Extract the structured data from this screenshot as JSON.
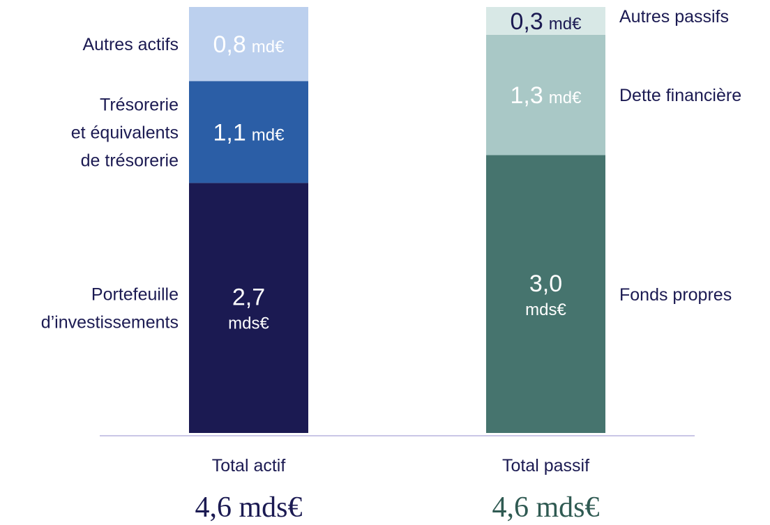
{
  "chart_data": {
    "type": "bar",
    "stacked": true,
    "title": "",
    "xlabel": "",
    "ylabel": "",
    "ylim": [
      0,
      4.6
    ],
    "grid": false,
    "categories": [
      "Total actif",
      "Total passif"
    ],
    "totals": [
      "4,6 mds€",
      "4,6 mds€"
    ],
    "total_colors": [
      "#1b1a52",
      "#2f5a52"
    ],
    "stacks": [
      {
        "category": "Total actif",
        "segments": [
          {
            "name": "Portefeuille d’investissements",
            "name_lines": [
              "Portefeuille",
              "d’investissements"
            ],
            "value": 2.7,
            "value_text": "2,7",
            "unit": "mds€",
            "color": "#1b1a52",
            "text_color": "#ffffff"
          },
          {
            "name": "Trésorerie et équivalents de trésorerie",
            "name_lines": [
              "Trésorerie",
              "et équivalents",
              "de trésorerie"
            ],
            "value": 1.1,
            "value_text": "1,1",
            "unit": "md€",
            "color": "#2b5ea6",
            "text_color": "#ffffff"
          },
          {
            "name": "Autres actifs",
            "name_lines": [
              "Autres actifs"
            ],
            "value": 0.8,
            "value_text": "0,8",
            "unit": "md€",
            "color": "#bcd0ee",
            "text_color": "#ffffff"
          }
        ]
      },
      {
        "category": "Total passif",
        "segments": [
          {
            "name": "Fonds propres",
            "name_lines": [
              "Fonds propres"
            ],
            "value": 3.0,
            "value_text": "3,0",
            "unit": "mds€",
            "color": "#46746e",
            "text_color": "#ffffff"
          },
          {
            "name": "Dette financière",
            "name_lines": [
              "Dette financière"
            ],
            "value": 1.3,
            "value_text": "1,3",
            "unit": "md€",
            "color": "#a9c8c6",
            "text_color": "#ffffff"
          },
          {
            "name": "Autres passifs",
            "name_lines": [
              "Autres passifs"
            ],
            "value": 0.3,
            "value_text": "0,3",
            "unit": "md€",
            "color": "#d8e8e6",
            "text_color": "#1b1a52"
          }
        ]
      }
    ],
    "baseline_color": "#c9c6e6"
  }
}
